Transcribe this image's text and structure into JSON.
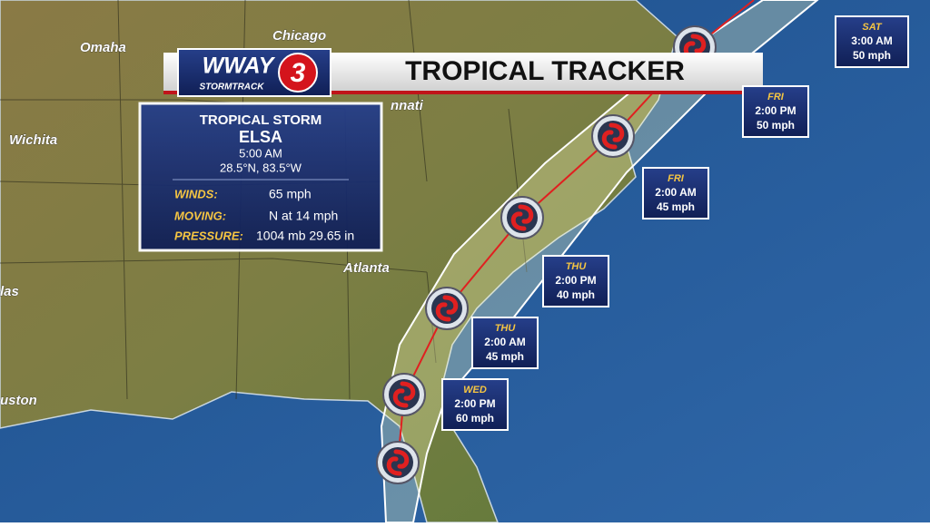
{
  "header": {
    "station": "WWAY",
    "channel": "3",
    "brand": "STORMTRACK",
    "title": "TROPICAL TRACKER"
  },
  "info": {
    "storm_type": "TROPICAL STORM",
    "name": "ELSA",
    "time": "5:00 AM",
    "position": "28.5°N, 83.5°W",
    "rows": [
      {
        "label": "WINDS:",
        "value": "65 mph"
      },
      {
        "label": "MOVING:",
        "value": "N at 14 mph"
      },
      {
        "label": "PRESSURE:",
        "value": "1004 mb  29.65 in"
      }
    ]
  },
  "cities": [
    "Omaha",
    "Chicago",
    "Wichita",
    "las",
    "uston",
    "Atlanta",
    "nnati"
  ],
  "forecast": [
    {
      "day": "WED",
      "time": "2:00 PM",
      "wind": "60 mph"
    },
    {
      "day": "THU",
      "time": "2:00 AM",
      "wind": "45 mph"
    },
    {
      "day": "THU",
      "time": "2:00 PM",
      "wind": "40 mph"
    },
    {
      "day": "FRI",
      "time": "2:00 AM",
      "wind": "45 mph"
    },
    {
      "day": "FRI",
      "time": "2:00 PM",
      "wind": "50 mph"
    },
    {
      "day": "SAT",
      "time": "3:00 AM",
      "wind": "50 mph"
    }
  ]
}
